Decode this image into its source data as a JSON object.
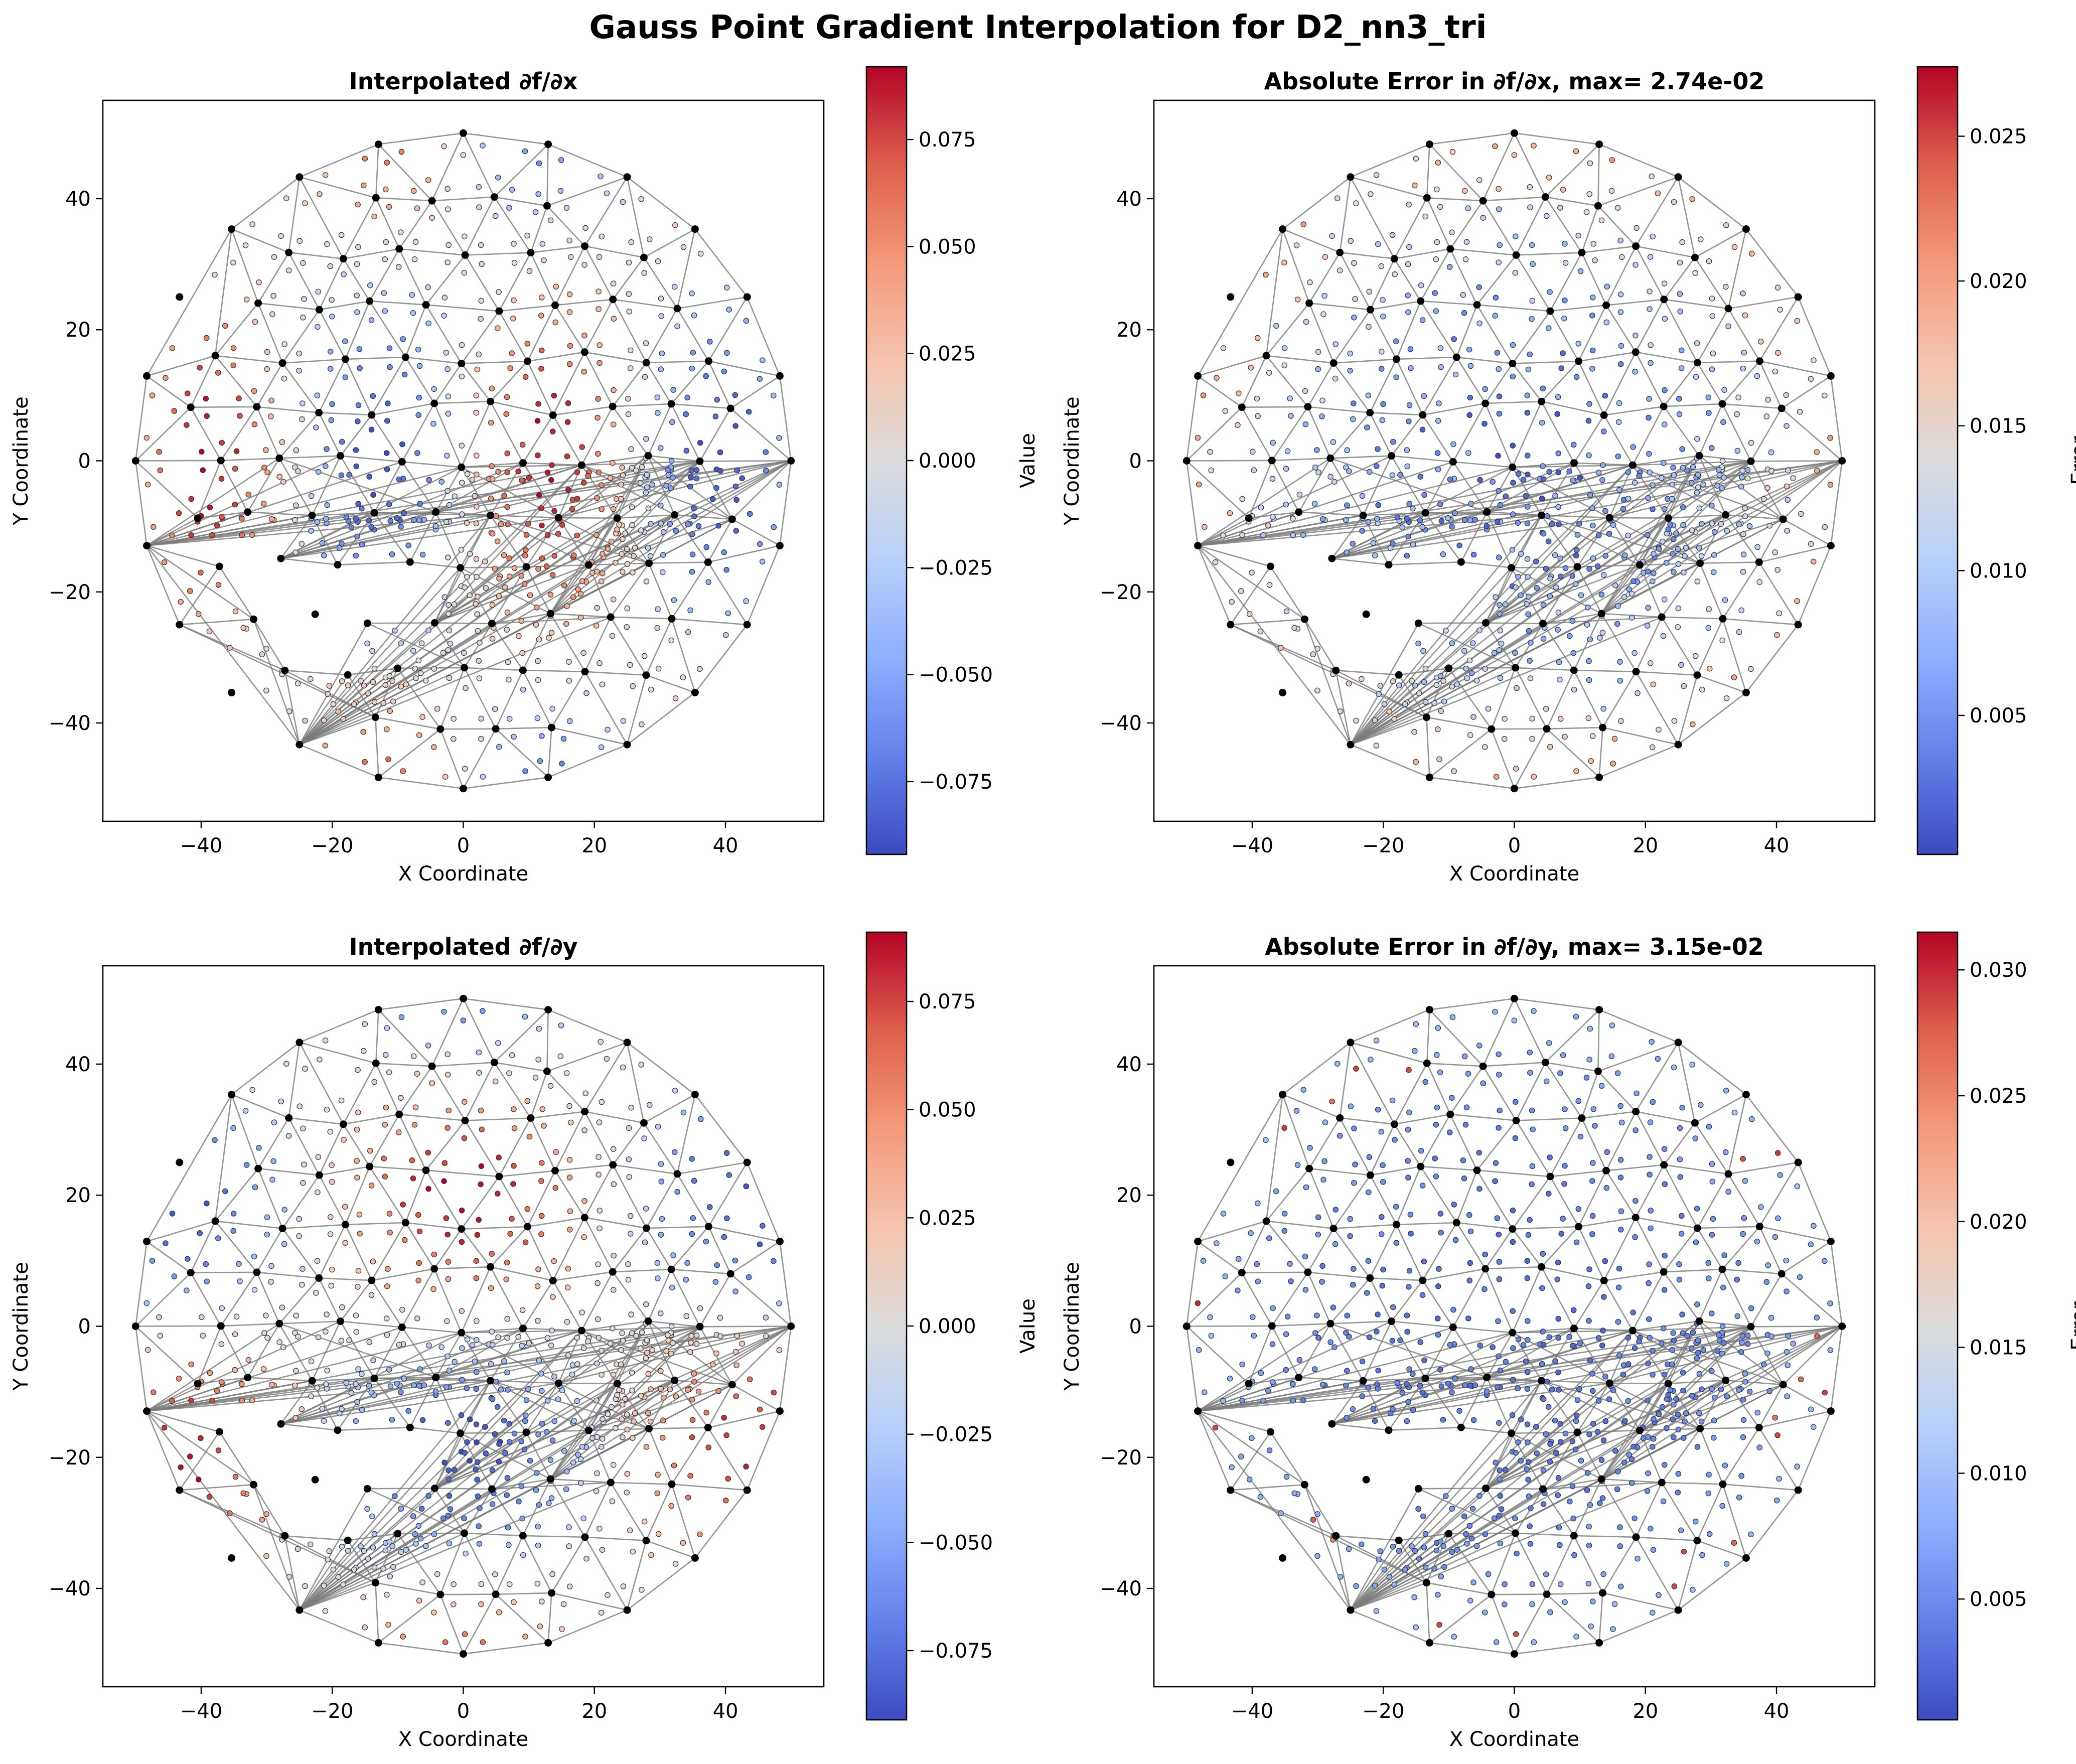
{
  "figure": {
    "suptitle": "Gauss Point Gradient Interpolation for D2_nn3_tri"
  },
  "chart_data": [
    {
      "type": "scatter",
      "title": "Interpolated ∂f/∂x",
      "xlabel": "X Coordinate",
      "ylabel": "Y Coordinate",
      "xlim": [
        -55,
        55
      ],
      "ylim": [
        -55,
        55
      ],
      "xticks": [
        -40,
        -20,
        0,
        20,
        40
      ],
      "yticks": [
        -40,
        -20,
        0,
        20,
        40
      ],
      "colorbar": {
        "label": "Value",
        "range": [
          -0.092,
          0.092
        ],
        "ticks": [
          -0.075,
          -0.05,
          -0.025,
          0.0,
          0.025,
          0.05,
          0.075
        ],
        "tick_labels": [
          "−0.075",
          "−0.050",
          "−0.025",
          "0.000",
          "0.025",
          "0.050",
          "0.075"
        ],
        "colormap": "coolwarm"
      },
      "field": "dfdx"
    },
    {
      "type": "scatter",
      "title": "Absolute Error in ∂f/∂x, max= 2.74e-02",
      "xlabel": "X Coordinate",
      "ylabel": "Y Coordinate",
      "xlim": [
        -55,
        55
      ],
      "ylim": [
        -55,
        55
      ],
      "xticks": [
        -40,
        -20,
        0,
        20,
        40
      ],
      "yticks": [
        -40,
        -20,
        0,
        20,
        40
      ],
      "colorbar": {
        "label": "Error",
        "range": [
          0.0002,
          0.0274
        ],
        "ticks": [
          0.005,
          0.01,
          0.015,
          0.02,
          0.025
        ],
        "tick_labels": [
          "0.005",
          "0.010",
          "0.015",
          "0.020",
          "0.025"
        ],
        "colormap": "coolwarm"
      },
      "field": "errx"
    },
    {
      "type": "scatter",
      "title": "Interpolated ∂f/∂y",
      "xlabel": "X Coordinate",
      "ylabel": "Y Coordinate",
      "xlim": [
        -55,
        55
      ],
      "ylim": [
        -55,
        55
      ],
      "xticks": [
        -40,
        -20,
        0,
        20,
        40
      ],
      "yticks": [
        -40,
        -20,
        0,
        20,
        40
      ],
      "colorbar": {
        "label": "Value",
        "range": [
          -0.091,
          0.091
        ],
        "ticks": [
          -0.075,
          -0.05,
          -0.025,
          0.0,
          0.025,
          0.05,
          0.075
        ],
        "tick_labels": [
          "−0.075",
          "−0.050",
          "−0.025",
          "0.000",
          "0.025",
          "0.050",
          "0.075"
        ],
        "colormap": "coolwarm"
      },
      "field": "dfdy"
    },
    {
      "type": "scatter",
      "title": "Absolute Error in ∂f/∂y, max= 3.15e-02",
      "xlabel": "X Coordinate",
      "ylabel": "Y Coordinate",
      "xlim": [
        -55,
        55
      ],
      "ylim": [
        -55,
        55
      ],
      "xticks": [
        -40,
        -20,
        0,
        20,
        40
      ],
      "yticks": [
        -40,
        -20,
        0,
        20,
        40
      ],
      "colorbar": {
        "label": "Error",
        "range": [
          0.0002,
          0.0315
        ],
        "ticks": [
          0.005,
          0.01,
          0.015,
          0.02,
          0.025,
          0.03
        ],
        "tick_labels": [
          "0.005",
          "0.010",
          "0.015",
          "0.020",
          "0.025",
          "0.030"
        ],
        "colormap": "coolwarm"
      },
      "field": "erry"
    }
  ],
  "mesh": {
    "domain_radius": 50,
    "boundary_points": 24,
    "ring_spacing": 9.2,
    "node_count_approx": 160
  }
}
